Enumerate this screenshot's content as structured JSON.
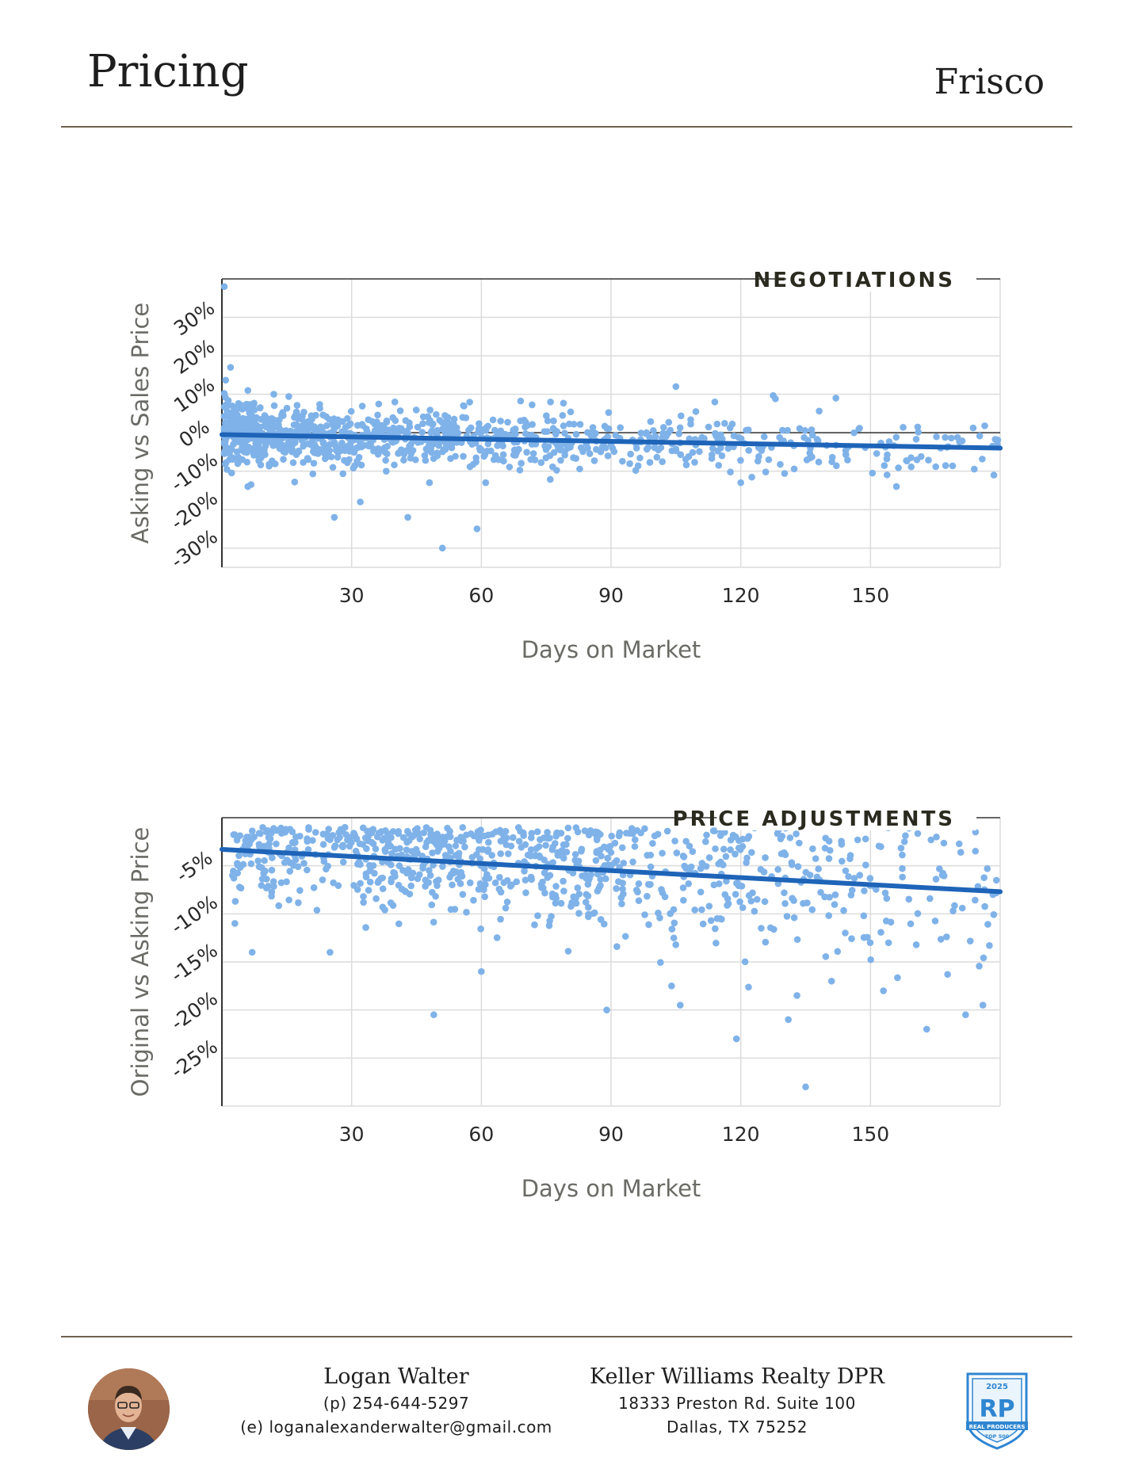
{
  "header": {
    "title": "Pricing",
    "city": "Frisco"
  },
  "chart_data": [
    {
      "type": "scatter",
      "title": "NEGOTIATIONS",
      "xlabel": "Days on Market",
      "ylabel": "Asking vs Sales Price",
      "xlim": [
        0,
        180
      ],
      "ylim": [
        -35,
        40
      ],
      "x_ticks": [
        30,
        60,
        90,
        120,
        150
      ],
      "y_ticks": [
        30,
        20,
        10,
        0,
        -10,
        -20,
        -30
      ],
      "y_tick_labels": [
        "30%",
        "20%",
        "10%",
        "0%",
        "-10%",
        "-20%",
        "-30%"
      ],
      "grid": true,
      "trend": {
        "x": [
          0,
          180
        ],
        "y": [
          -0.5,
          -4
        ]
      },
      "colors": {
        "points": "#7fb2e8",
        "trend": "#1e64b8"
      },
      "outliers": [
        [
          0,
          38
        ],
        [
          2,
          17
        ],
        [
          6,
          11
        ],
        [
          12,
          10
        ],
        [
          40,
          8
        ],
        [
          76,
          8
        ],
        [
          105,
          12
        ],
        [
          114,
          8
        ],
        [
          142,
          9
        ],
        [
          26,
          -22
        ],
        [
          32,
          -18
        ],
        [
          43,
          -22
        ],
        [
          51,
          -30
        ],
        [
          59,
          -25
        ],
        [
          48,
          -13
        ],
        [
          61,
          -13
        ],
        [
          6,
          -14
        ],
        [
          156,
          -14
        ],
        [
          120,
          -13
        ],
        [
          12,
          -8
        ],
        [
          38,
          -10
        ]
      ],
      "density": [
        {
          "x0": 0,
          "x1": 8,
          "mean": 0.5,
          "sd": 4,
          "n": 190
        },
        {
          "x0": 8,
          "x1": 30,
          "mean": -1,
          "sd": 3.5,
          "n": 260
        },
        {
          "x0": 30,
          "x1": 60,
          "mean": -1.5,
          "sd": 3.5,
          "n": 230
        },
        {
          "x0": 60,
          "x1": 90,
          "mean": -2,
          "sd": 3.5,
          "n": 150
        },
        {
          "x0": 90,
          "x1": 120,
          "mean": -2.5,
          "sd": 3.5,
          "n": 90
        },
        {
          "x0": 120,
          "x1": 150,
          "mean": -3,
          "sd": 4,
          "n": 55
        },
        {
          "x0": 150,
          "x1": 180,
          "mean": -3.5,
          "sd": 4,
          "n": 45
        }
      ]
    },
    {
      "type": "scatter",
      "title": "PRICE ADJUSTMENTS",
      "xlabel": "Days on Market",
      "ylabel": "Original vs Asking Price",
      "xlim": [
        0,
        180
      ],
      "ylim": [
        -30,
        0
      ],
      "x_ticks": [
        30,
        60,
        90,
        120,
        150
      ],
      "y_ticks": [
        -5,
        -10,
        -15,
        -20,
        -25
      ],
      "y_tick_labels": [
        "-5%",
        "-10%",
        "-15%",
        "-20%",
        "-25%"
      ],
      "grid": true,
      "trend": {
        "x": [
          0,
          180
        ],
        "y": [
          -3.3,
          -7.7
        ]
      },
      "colors": {
        "points": "#7fb2e8",
        "trend": "#1e64b8"
      },
      "outliers": [
        [
          49,
          -20.5
        ],
        [
          89,
          -20
        ],
        [
          119,
          -23
        ],
        [
          135,
          -28
        ],
        [
          131,
          -21
        ],
        [
          163,
          -22
        ],
        [
          153,
          -18
        ],
        [
          172,
          -20.5
        ],
        [
          176,
          -19.5
        ],
        [
          7,
          -14
        ],
        [
          25,
          -14
        ],
        [
          106,
          -19.5
        ],
        [
          104,
          -17.5
        ],
        [
          141,
          -17
        ],
        [
          133,
          -18.5
        ],
        [
          60,
          -16
        ],
        [
          3,
          -11
        ]
      ],
      "density": [
        {
          "x0": 2,
          "x1": 30,
          "mean": -3.5,
          "sd": 2.5,
          "n": 150
        },
        {
          "x0": 30,
          "x1": 60,
          "mean": -4,
          "sd": 3,
          "n": 220
        },
        {
          "x0": 60,
          "x1": 90,
          "mean": -4.8,
          "sd": 3.2,
          "n": 200
        },
        {
          "x0": 90,
          "x1": 120,
          "mean": -6,
          "sd": 4,
          "n": 130
        },
        {
          "x0": 120,
          "x1": 150,
          "mean": -6.5,
          "sd": 4.5,
          "n": 100
        },
        {
          "x0": 150,
          "x1": 180,
          "mean": -7,
          "sd": 5,
          "n": 60
        }
      ]
    }
  ],
  "footer": {
    "agent": {
      "name": "Logan Walter",
      "phone": "(p) 254-644-5297",
      "email": "(e) loganalexanderwalter@gmail.com"
    },
    "brokerage": {
      "name": "Keller Williams Realty DPR",
      "address1": "18333 Preston Rd. Suite 100",
      "address2": "Dallas, TX 75252"
    },
    "badge": {
      "year": "2025",
      "text": "REAL PRODUCERS",
      "sub": "TOP 500",
      "region": "NORTH DALLAS"
    }
  }
}
